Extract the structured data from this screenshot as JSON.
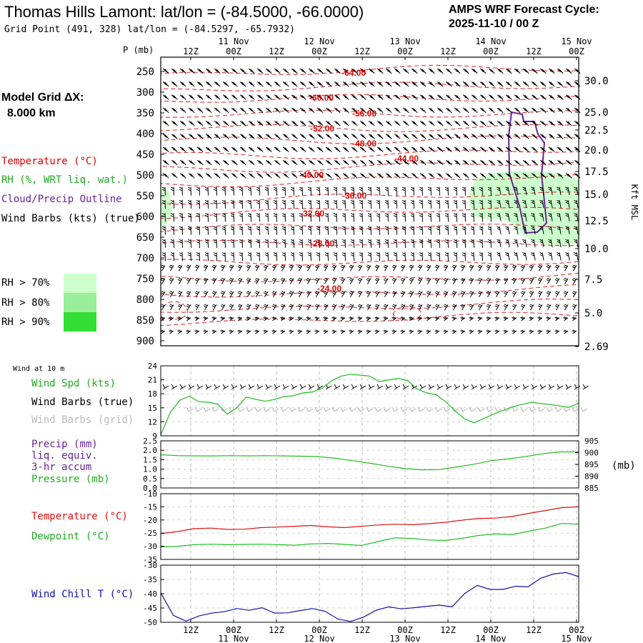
{
  "header": {
    "title": "Thomas Hills Lamont:  lat/lon = (-84.5000, -66.0000)",
    "grid_point": "Grid Point (491, 328) lat/lon = (-84.5297, -65.7932)",
    "cycle_line1": "AMPS WRF Forecast Cycle:",
    "cycle_line2": "2025-11-10 / 00  Z"
  },
  "left_legend": {
    "model_grid_line1": "Model Grid ΔX:",
    "model_grid_line2": "8.000 km",
    "temperature": "Temperature (°C)",
    "rh": "RH (%, WRT liq. wat.)",
    "cloud": "Cloud/Precip Outline",
    "wind_barbs": "Wind Barbs (kts) (true)",
    "rh70": "RH > 70%",
    "rh80": "RH > 80%",
    "rh90": "RH > 90%",
    "rh70_color": "#ccffcc",
    "rh80_color": "#99ee99",
    "rh90_color": "#33dd33"
  },
  "time_axis": {
    "top_labels": [
      "12Z",
      "00Z",
      "12Z",
      "00Z",
      "12Z",
      "00Z",
      "12Z",
      "00Z",
      "12Z",
      "00Z"
    ],
    "top_dates": [
      "11 Nov",
      "12 Nov",
      "13 Nov",
      "14 Nov",
      "15 Nov"
    ],
    "bottom_labels": [
      "12Z",
      "00Z",
      "12Z",
      "00Z",
      "12Z",
      "00Z",
      "12Z",
      "00Z",
      "12Z",
      "00Z"
    ],
    "bottom_dates": [
      "11 Nov",
      "12 Nov",
      "13 Nov",
      "14 Nov",
      "15 Nov"
    ]
  },
  "chart_data": [
    {
      "type": "line",
      "name": "cross-section",
      "y_axis_title": "P (mb)",
      "y_ticks": [
        "250",
        "300",
        "350",
        "400",
        "450",
        "500",
        "550",
        "600",
        "650",
        "700",
        "750",
        "800",
        "850",
        "900"
      ],
      "right_axis_title": "Kft MSL",
      "right_ticks": [
        "30.0",
        "25.0",
        "22.5",
        "20.0",
        "17.5",
        "15.0",
        "12.5",
        "10.0",
        "7.5",
        "5.0",
        "2.69"
      ],
      "temperature_labels": [
        "-64.00",
        "-60.00",
        "-56.00",
        "-52.00",
        "-48.00",
        "-44.00",
        "-40.00",
        "-36.00",
        "-32.00",
        "-28.00",
        "-24.00"
      ]
    },
    {
      "type": "line",
      "name": "wind",
      "panel_label": "Wind at 10 m",
      "legend": [
        "Wind Spd (kts)",
        "Wind Barbs (true)",
        "Wind Barbs (grid)"
      ],
      "ylim": [
        9,
        24
      ],
      "y_ticks": [
        "24",
        "21",
        "18",
        "15",
        "12",
        "9"
      ],
      "series": [
        {
          "name": "Wind Spd (kts)",
          "color": "#22bb22",
          "values": [
            9.2,
            14,
            16.6,
            17.5,
            16.3,
            16.2,
            15.8,
            13.6,
            15,
            17.3,
            16.8,
            16.4,
            16.8,
            17.4,
            17.6,
            18.2,
            18.4,
            19.2,
            20.8,
            21.8,
            22.2,
            22,
            21.8,
            20.6,
            21,
            21.3,
            20.8,
            19,
            18.2,
            17.8,
            16.3,
            14.3,
            12.6,
            11.8,
            12.7,
            13.6,
            14.4,
            15.2,
            15.7,
            16.2,
            15.9,
            15.7,
            15.4,
            15.1,
            16
          ]
        }
      ]
    },
    {
      "type": "line",
      "name": "precip-pressure",
      "legend": [
        "Precip (mm)",
        "liq. equiv.",
        "3-hr accum",
        "Pressure (mb)"
      ],
      "ylim_left": [
        0,
        2.5
      ],
      "y_ticks_left": [
        "2.5",
        "2.0",
        "1.5",
        "1.0",
        "0.5",
        "0.0"
      ],
      "ylim_right": [
        885,
        905
      ],
      "y_ticks_right": [
        "905",
        "900",
        "895",
        "890",
        "885"
      ],
      "right_unit": "(mb)",
      "series": [
        {
          "name": "Pressure (mb)",
          "color": "#22bb22",
          "values": [
            899.1,
            898.7,
            898.6,
            898.6,
            898.7,
            898.6,
            898.7,
            898.6,
            898.5,
            898.3,
            897.6,
            896.6,
            895.5,
            894.3,
            893.2,
            892.7,
            892.8,
            893.9,
            895.1,
            896.6,
            897.4,
            898.4,
            899.6,
            900.3,
            900.3
          ]
        }
      ]
    },
    {
      "type": "line",
      "name": "temperature-dewpoint",
      "legend": [
        "Temperature (°C)",
        "Dewpoint (°C)"
      ],
      "ylim": [
        -35,
        -10
      ],
      "y_ticks": [
        "-10",
        "-15",
        "-20",
        "-25",
        "-30",
        "-35"
      ],
      "series": [
        {
          "name": "Temperature (°C)",
          "color": "#dd1111",
          "values": [
            -25.2,
            -24.4,
            -23.3,
            -23.1,
            -23.6,
            -23.5,
            -22.9,
            -22.7,
            -22.4,
            -22.1,
            -22.6,
            -22.9,
            -22.4,
            -21.9,
            -21.6,
            -21.8,
            -21.4,
            -20.9,
            -20.1,
            -19.4,
            -19.3,
            -18.7,
            -17.5,
            -16.4,
            -15.3,
            -15.0
          ]
        },
        {
          "name": "Dewpoint (°C)",
          "color": "#22bb22",
          "values": [
            -30.3,
            -30.0,
            -29.4,
            -29.2,
            -29.4,
            -29.3,
            -29.2,
            -29.4,
            -29.6,
            -29.1,
            -28.9,
            -29.3,
            -29.7,
            -28.2,
            -26.8,
            -27.0,
            -27.6,
            -27.8,
            -27.0,
            -25.9,
            -25.3,
            -25.6,
            -24.3,
            -23.1,
            -21.3,
            -21.6
          ]
        }
      ]
    },
    {
      "type": "line",
      "name": "wind-chill",
      "legend": [
        "Wind Chill T (°C)"
      ],
      "ylim": [
        -50,
        -30
      ],
      "y_ticks": [
        "-30",
        "-35",
        "-40",
        "-45",
        "-50"
      ],
      "series": [
        {
          "name": "Wind Chill T (°C)",
          "color": "#1111aa",
          "values": [
            -39.7,
            -47.6,
            -49.6,
            -47.8,
            -46.8,
            -46.3,
            -45.2,
            -45.8,
            -44.9,
            -46.8,
            -46.7,
            -45.9,
            -45.2,
            -46.2,
            -48.9,
            -49.7,
            -48.2,
            -45.8,
            -44.6,
            -45.3,
            -44.9,
            -44.4,
            -44.0,
            -44.6,
            -39.9,
            -37.1,
            -38.5,
            -38.5,
            -37.4,
            -37.6,
            -34.6,
            -33.1,
            -32.6,
            -34.0
          ]
        }
      ]
    }
  ]
}
